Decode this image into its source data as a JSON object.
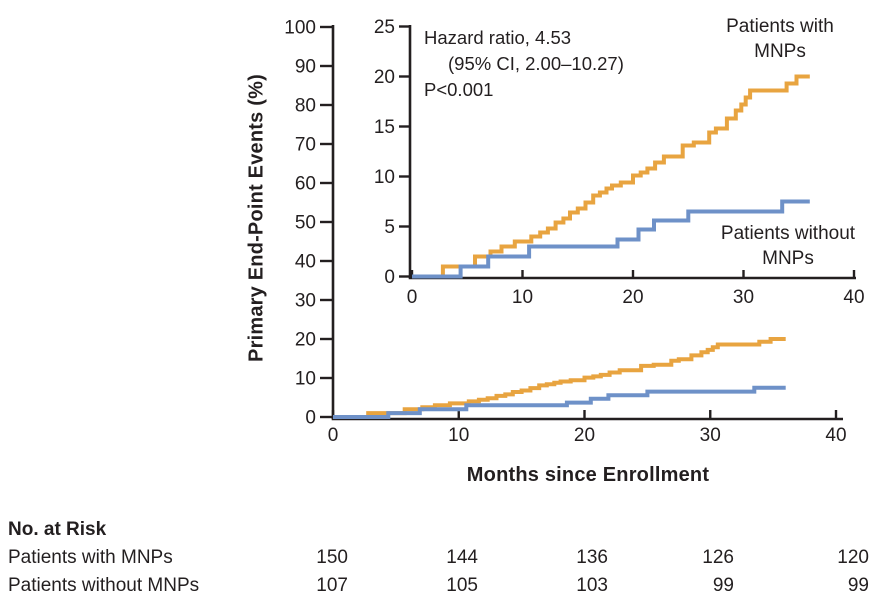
{
  "chart_data": {
    "type": "line",
    "subtype": "kaplan-meier-step",
    "xlabel": "Months since Enrollment",
    "ylabel": "Primary End-Point Events (%)",
    "annotation": {
      "line1": "Hazard ratio, 4.53",
      "line2": "(95% CI, 2.00–10.27)",
      "line3": "P<0.001"
    },
    "main_axis": {
      "xlim": [
        0,
        40
      ],
      "ylim": [
        0,
        100
      ],
      "xticks": [
        0,
        10,
        20,
        30,
        40
      ],
      "yticks": [
        0,
        10,
        20,
        30,
        40,
        50,
        60,
        70,
        80,
        90,
        100
      ],
      "grid": false
    },
    "inset_axis": {
      "xlim": [
        0,
        40
      ],
      "ylim": [
        0,
        25
      ],
      "xticks": [
        0,
        10,
        20,
        30,
        40
      ],
      "yticks": [
        0,
        5,
        10,
        15,
        20,
        25
      ],
      "grid": false
    },
    "colors": {
      "axis": "#231F20",
      "with_mnps": "#E8A440",
      "without_mnps": "#6E91C8"
    },
    "legend_position": "inside-right",
    "series": [
      {
        "name": "Patients with MNPs",
        "color": "#E8A440",
        "points": [
          [
            0,
            0
          ],
          [
            2.8,
            1.0
          ],
          [
            5.7,
            2.0
          ],
          [
            7.1,
            2.5
          ],
          [
            8.1,
            3.0
          ],
          [
            9.3,
            3.5
          ],
          [
            10.8,
            4.0
          ],
          [
            11.6,
            4.4
          ],
          [
            12.3,
            4.8
          ],
          [
            13.0,
            5.4
          ],
          [
            13.7,
            5.8
          ],
          [
            14.3,
            6.4
          ],
          [
            15.0,
            6.8
          ],
          [
            15.7,
            7.4
          ],
          [
            16.4,
            8.1
          ],
          [
            17.0,
            8.4
          ],
          [
            17.6,
            8.8
          ],
          [
            18.1,
            9.1
          ],
          [
            18.9,
            9.4
          ],
          [
            20.0,
            10.1
          ],
          [
            20.7,
            10.4
          ],
          [
            21.3,
            10.8
          ],
          [
            22.0,
            11.4
          ],
          [
            22.8,
            12.0
          ],
          [
            24.5,
            13.1
          ],
          [
            25.5,
            13.4
          ],
          [
            26.9,
            14.4
          ],
          [
            27.5,
            14.8
          ],
          [
            28.5,
            15.8
          ],
          [
            29.3,
            16.6
          ],
          [
            29.8,
            17.2
          ],
          [
            30.2,
            17.9
          ],
          [
            30.6,
            18.6
          ],
          [
            33.9,
            19.3
          ],
          [
            34.8,
            20.0
          ],
          [
            36.0,
            20.0
          ]
        ]
      },
      {
        "name": "Patients without MNPs",
        "color": "#6E91C8",
        "points": [
          [
            0,
            0
          ],
          [
            4.4,
            1.0
          ],
          [
            6.9,
            2.0
          ],
          [
            10.6,
            3.0
          ],
          [
            18.6,
            3.7
          ],
          [
            20.5,
            4.7
          ],
          [
            21.9,
            5.6
          ],
          [
            25.0,
            6.5
          ],
          [
            33.5,
            7.5
          ],
          [
            36.0,
            7.5
          ]
        ]
      }
    ]
  },
  "risk_table": {
    "header": "No. at Risk",
    "rows": [
      {
        "label": "Patients with MNPs",
        "values": [
          "150",
          "144",
          "136",
          "126",
          "120"
        ]
      },
      {
        "label": "Patients without MNPs",
        "values": [
          "107",
          "105",
          "103",
          "99",
          "99"
        ]
      }
    ]
  }
}
